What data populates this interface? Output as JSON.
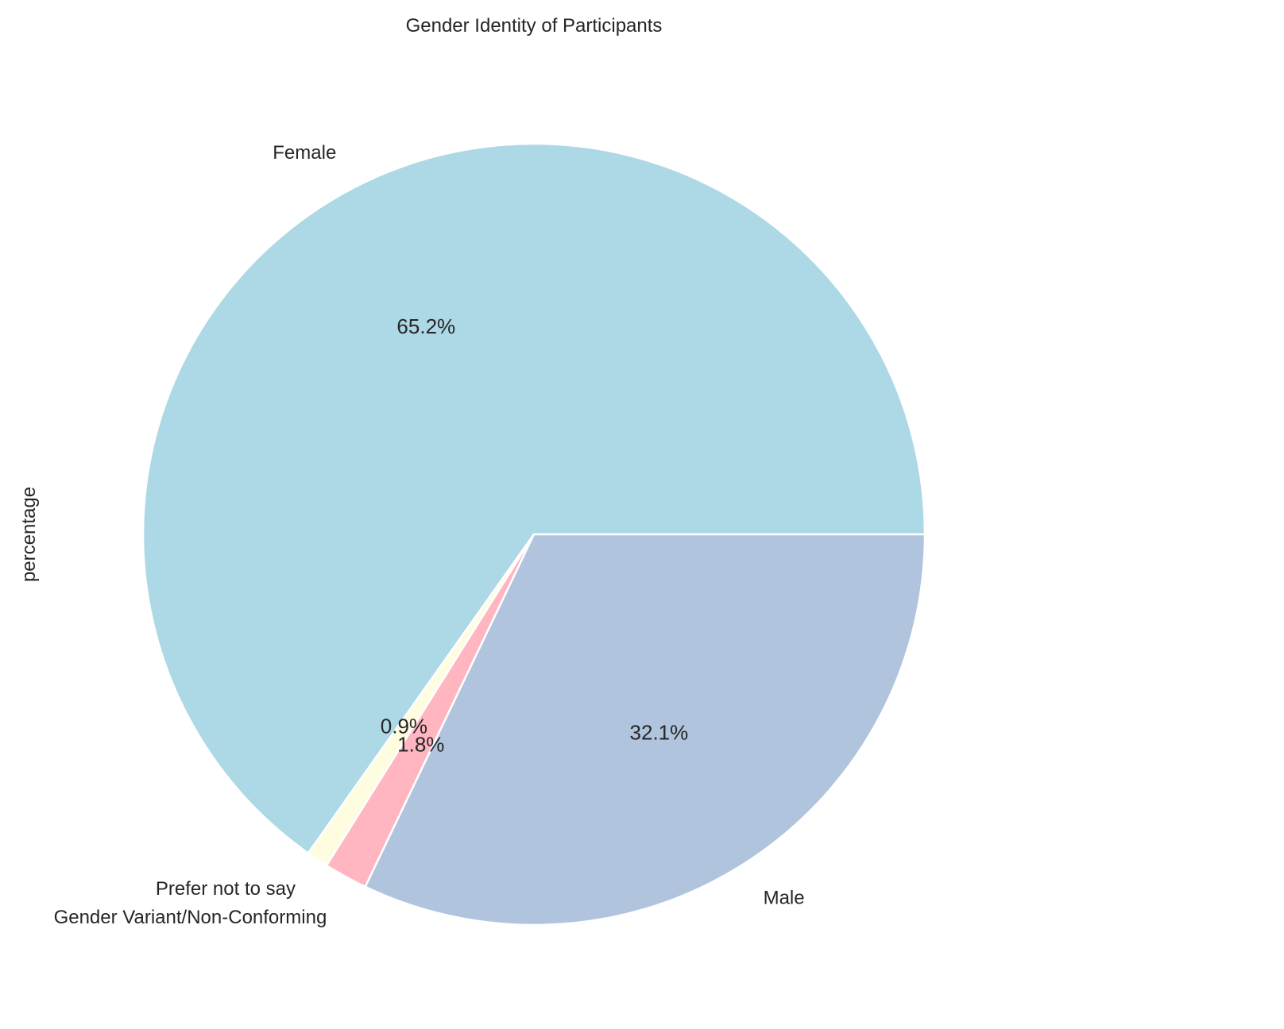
{
  "chart_data": {
    "type": "pie",
    "title": "Gender Identity of Participants",
    "ylabel": "percentage",
    "start_angle_deg": 0,
    "direction": "counterclockwise",
    "slices": [
      {
        "label": "Female",
        "value": 65.2,
        "pct_label": "65.2%",
        "color": "#add8e6"
      },
      {
        "label": "Prefer not to say",
        "value": 0.9,
        "pct_label": "0.9%",
        "color": "#fffde0"
      },
      {
        "label": "Gender Variant/Non-Conforming",
        "value": 1.8,
        "pct_label": "1.8%",
        "color": "#ffb6c1"
      },
      {
        "label": "Male",
        "value": 32.1,
        "pct_label": "32.1%",
        "color": "#b0c4de"
      }
    ]
  }
}
